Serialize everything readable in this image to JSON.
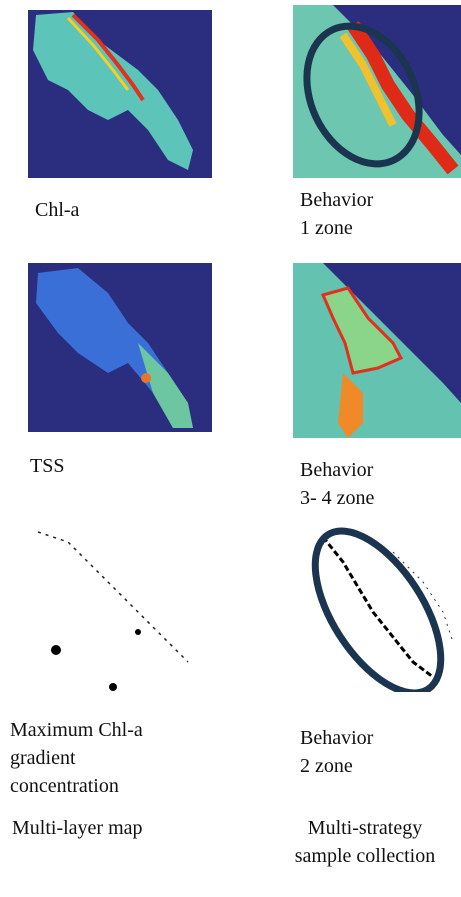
{
  "panels": [
    {
      "caption": [
        "Chl-a"
      ]
    },
    {
      "caption": [
        "Behavior",
        "1 zone"
      ]
    },
    {
      "caption": [
        "TSS"
      ]
    },
    {
      "caption": [
        "Behavior",
        "3- 4 zone"
      ]
    },
    {
      "caption": [
        "Maximum Chl-a",
        "gradient",
        "concentration"
      ]
    },
    {
      "caption": [
        "Behavior",
        "2 zone"
      ]
    }
  ],
  "footer": {
    "left": [
      "Multi-layer map"
    ],
    "right": [
      "Multi-strategy",
      "sample collection"
    ]
  }
}
